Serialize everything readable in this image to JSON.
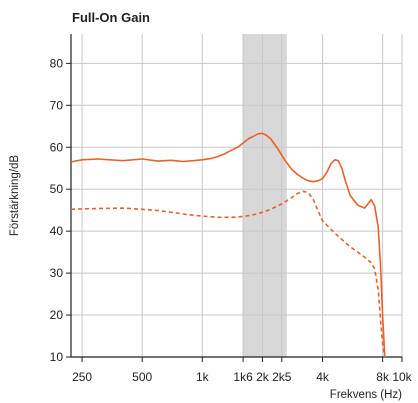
{
  "chart_data": {
    "type": "line",
    "title": "Full-On Gain",
    "xlabel": "Frekvens (Hz)",
    "ylabel": "Förstärkning/dB",
    "x_scale": "log",
    "xlim": [
      220,
      10000
    ],
    "ylim": [
      10,
      87
    ],
    "grid": true,
    "x_ticks": [
      {
        "value": 250,
        "label": "250"
      },
      {
        "value": 500,
        "label": "500"
      },
      {
        "value": 1000,
        "label": "1k"
      },
      {
        "value": 1600,
        "label": "1k6"
      },
      {
        "value": 2000,
        "label": "2k"
      },
      {
        "value": 2500,
        "label": "2k5"
      },
      {
        "value": 4000,
        "label": "4k"
      },
      {
        "value": 8000,
        "label": "8k"
      },
      {
        "value": 10000,
        "label": "10k"
      }
    ],
    "y_ticks": [
      10,
      20,
      30,
      40,
      50,
      60,
      70,
      80
    ],
    "highlight_band": {
      "x_from": 1600,
      "x_to": 2650,
      "color": "#d8d8d8"
    },
    "series_color": "#e8622c",
    "series": [
      {
        "style": "solid",
        "x": [
          220,
          250,
          300,
          400,
          500,
          600,
          700,
          800,
          900,
          1000,
          1100,
          1200,
          1300,
          1400,
          1500,
          1600,
          1700,
          1800,
          1900,
          2000,
          2100,
          2200,
          2400,
          2600,
          2800,
          3000,
          3200,
          3400,
          3600,
          3800,
          4000,
          4200,
          4400,
          4600,
          4800,
          5000,
          5200,
          5500,
          6000,
          6500,
          7000,
          7300,
          7600,
          7800,
          8000,
          8200
        ],
        "y": [
          56.5,
          57,
          57.2,
          56.8,
          57.2,
          56.7,
          56.9,
          56.6,
          56.8,
          57,
          57.3,
          57.8,
          58.5,
          59.3,
          60,
          61,
          62,
          62.6,
          63.2,
          63.3,
          62.8,
          62,
          59.5,
          56.8,
          54.8,
          53.5,
          52.6,
          52,
          51.8,
          52,
          52.5,
          54,
          56,
          57,
          56.8,
          55,
          52,
          48.5,
          46.2,
          45.5,
          47.5,
          46,
          41,
          32,
          20,
          10
        ]
      },
      {
        "style": "dashed",
        "x": [
          220,
          250,
          300,
          400,
          500,
          600,
          700,
          800,
          900,
          1000,
          1200,
          1400,
          1600,
          1800,
          2000,
          2200,
          2500,
          2800,
          3000,
          3200,
          3400,
          3600,
          3800,
          4000,
          4500,
          5000,
          5500,
          6000,
          6500,
          7000,
          7300,
          7600,
          7800,
          8000,
          8200
        ],
        "y": [
          45.2,
          45.3,
          45.4,
          45.5,
          45.2,
          44.9,
          44.5,
          44.1,
          43.8,
          43.6,
          43.3,
          43.3,
          43.5,
          43.9,
          44.5,
          45.2,
          46.5,
          48,
          49,
          49.5,
          49.2,
          47.5,
          44.8,
          42.5,
          40,
          38,
          36.3,
          35,
          33.8,
          32.5,
          31,
          26,
          19,
          13,
          10
        ]
      }
    ]
  }
}
